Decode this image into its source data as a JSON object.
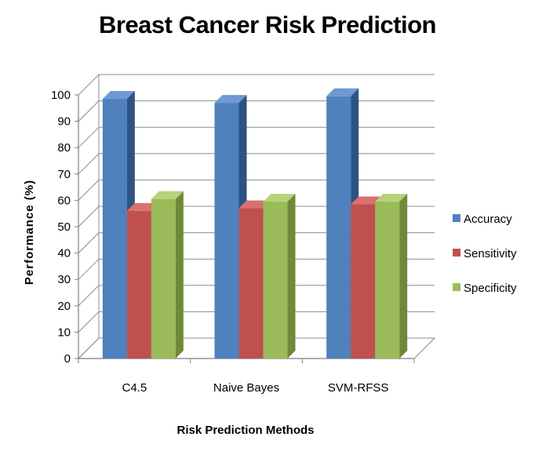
{
  "chart_data": {
    "type": "bar",
    "title": "Breast Cancer Risk Prediction",
    "xlabel": "Risk Prediction Methods",
    "ylabel": "Performance (%)",
    "ylim": [
      0,
      100
    ],
    "yticks": [
      0,
      10,
      20,
      30,
      40,
      50,
      60,
      70,
      80,
      90,
      100
    ],
    "categories": [
      "C4.5",
      "Naive Bayes",
      "SVM-RFSS"
    ],
    "series": [
      {
        "name": "Accuracy",
        "values": [
          98.5,
          97,
          99.5
        ],
        "color": "#4f81bd",
        "top_color": "#6f9ad3",
        "side_color": "#2f5283"
      },
      {
        "name": "Sensitivity",
        "values": [
          56,
          57,
          58.5
        ],
        "color": "#c0504d",
        "top_color": "#d9716e",
        "side_color": "#8c3836"
      },
      {
        "name": "Specificity",
        "values": [
          60.5,
          59.5,
          59.5
        ],
        "color": "#9bbb59",
        "top_color": "#b6d27a",
        "side_color": "#6d8a3a"
      }
    ],
    "grid": true,
    "legend": "right"
  }
}
